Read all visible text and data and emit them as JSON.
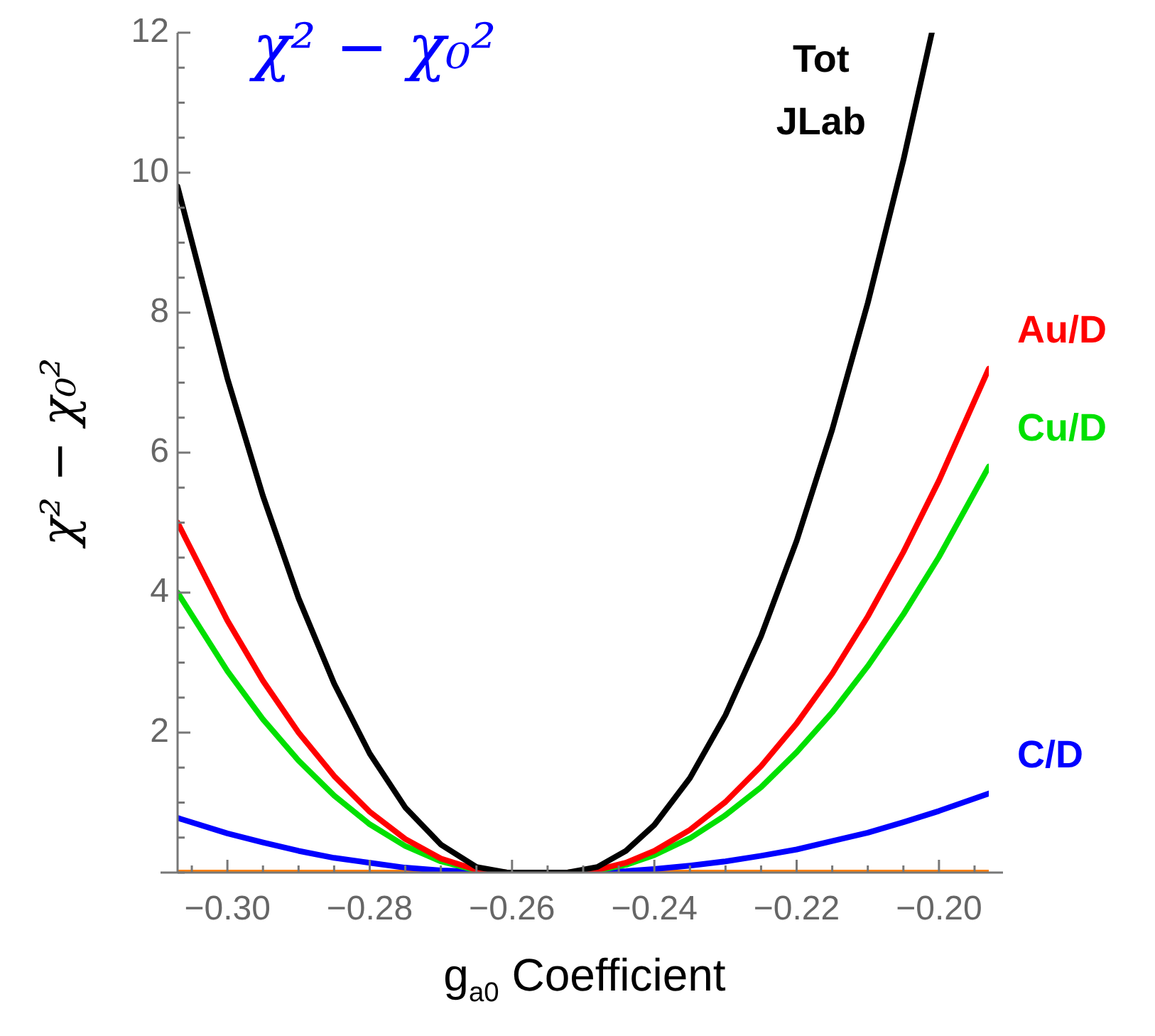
{
  "chart_data": {
    "type": "line",
    "title": "χ² − χ₀²",
    "ylabel": "χ² − χ₀²",
    "xlabel": "g$_{a0}$ Coefficient",
    "xlim": [
      -0.307,
      -0.193
    ],
    "ylim": [
      0,
      12
    ],
    "xticks": [
      {
        "value": -0.305,
        "label": null
      },
      {
        "value": -0.3,
        "label": "−0.30"
      },
      {
        "value": -0.295,
        "label": null
      },
      {
        "value": -0.29,
        "label": null
      },
      {
        "value": -0.285,
        "label": null
      },
      {
        "value": -0.28,
        "label": "−0.28"
      },
      {
        "value": -0.275,
        "label": null
      },
      {
        "value": -0.27,
        "label": null
      },
      {
        "value": -0.265,
        "label": null
      },
      {
        "value": -0.26,
        "label": "−0.26"
      },
      {
        "value": -0.255,
        "label": null
      },
      {
        "value": -0.25,
        "label": null
      },
      {
        "value": -0.245,
        "label": null
      },
      {
        "value": -0.24,
        "label": "−0.24"
      },
      {
        "value": -0.235,
        "label": null
      },
      {
        "value": -0.23,
        "label": null
      },
      {
        "value": -0.225,
        "label": null
      },
      {
        "value": -0.22,
        "label": "−0.22"
      },
      {
        "value": -0.215,
        "label": null
      },
      {
        "value": -0.21,
        "label": null
      },
      {
        "value": -0.205,
        "label": null
      },
      {
        "value": -0.2,
        "label": "−0.20"
      },
      {
        "value": -0.195,
        "label": null
      }
    ],
    "yticks": [
      {
        "value": 0,
        "label": null
      },
      {
        "value": 0.5,
        "label": null
      },
      {
        "value": 1,
        "label": null
      },
      {
        "value": 1.5,
        "label": null
      },
      2,
      {
        "value": 2.5,
        "label": null
      },
      {
        "value": 3,
        "label": null
      },
      {
        "value": 3.5,
        "label": null
      },
      4,
      {
        "value": 4.5,
        "label": null
      },
      {
        "value": 5,
        "label": null
      },
      {
        "value": 5.5,
        "label": null
      },
      6,
      {
        "value": 6.5,
        "label": null
      },
      {
        "value": 7,
        "label": null
      },
      {
        "value": 7.5,
        "label": null
      },
      8,
      {
        "value": 8.5,
        "label": null
      },
      {
        "value": 9,
        "label": null
      },
      {
        "value": 9.5,
        "label": null
      },
      10,
      {
        "value": 10.5,
        "label": null
      },
      {
        "value": 11,
        "label": null
      },
      {
        "value": 11.5,
        "label": null
      },
      12
    ],
    "grid": false,
    "legend": false,
    "marker": "none",
    "line_style": "solid",
    "series": [
      {
        "name": "Tot\nJLab",
        "color": "#000000",
        "x": [
          -0.307,
          -0.3,
          -0.295,
          -0.29,
          -0.285,
          -0.28,
          -0.275,
          -0.27,
          -0.265,
          -0.2607,
          -0.2522,
          -0.248,
          -0.244,
          -0.24,
          -0.235,
          -0.23,
          -0.225,
          -0.22,
          -0.215,
          -0.21,
          -0.205,
          -0.201
        ],
        "values": [
          9.8,
          7.06,
          5.38,
          3.92,
          2.7,
          1.7,
          0.93,
          0.4,
          0.08,
          0,
          0,
          0.08,
          0.31,
          0.68,
          1.35,
          2.25,
          3.38,
          4.74,
          6.33,
          8.14,
          10.18,
          12
        ]
      },
      {
        "name": "Au/D",
        "color": "#ff0000",
        "x": [
          -0.307,
          -0.3,
          -0.295,
          -0.29,
          -0.285,
          -0.28,
          -0.275,
          -0.27,
          -0.265,
          -0.2607,
          -0.2522,
          -0.248,
          -0.244,
          -0.24,
          -0.235,
          -0.23,
          -0.225,
          -0.22,
          -0.215,
          -0.21,
          -0.205,
          -0.2,
          -0.193
        ],
        "values": [
          5,
          3.6,
          2.74,
          2,
          1.38,
          0.87,
          0.48,
          0.2,
          0.04,
          0,
          0,
          0.04,
          0.14,
          0.31,
          0.61,
          1.01,
          1.52,
          2.13,
          2.84,
          3.66,
          4.58,
          5.6,
          7.2
        ]
      },
      {
        "name": "Cu/D",
        "color": "#00e000",
        "x": [
          -0.307,
          -0.3,
          -0.295,
          -0.29,
          -0.285,
          -0.28,
          -0.275,
          -0.27,
          -0.265,
          -0.2607,
          -0.2522,
          -0.248,
          -0.244,
          -0.24,
          -0.235,
          -0.23,
          -0.225,
          -0.22,
          -0.215,
          -0.21,
          -0.205,
          -0.2,
          -0.193
        ],
        "values": [
          4,
          2.88,
          2.19,
          1.6,
          1.1,
          0.69,
          0.38,
          0.16,
          0.03,
          0,
          0,
          0.03,
          0.11,
          0.25,
          0.49,
          0.82,
          1.22,
          1.72,
          2.29,
          2.95,
          3.69,
          4.51,
          5.8
        ]
      },
      {
        "name": "C/D",
        "color": "#0000ff",
        "x": [
          -0.307,
          -0.3,
          -0.295,
          -0.29,
          -0.285,
          -0.28,
          -0.275,
          -0.27,
          -0.2607,
          -0.2522,
          -0.244,
          -0.24,
          -0.235,
          -0.23,
          -0.225,
          -0.22,
          -0.215,
          -0.21,
          -0.205,
          -0.2,
          -0.193
        ],
        "values": [
          0.78,
          0.56,
          0.43,
          0.31,
          0.21,
          0.14,
          0.07,
          0.03,
          0,
          0,
          0.02,
          0.05,
          0.1,
          0.16,
          0.24,
          0.33,
          0.45,
          0.57,
          0.72,
          0.88,
          1.13
        ]
      },
      {
        "color": "#ff8000",
        "x": [
          -0.307,
          -0.193
        ],
        "values": [
          0,
          0
        ]
      }
    ]
  }
}
